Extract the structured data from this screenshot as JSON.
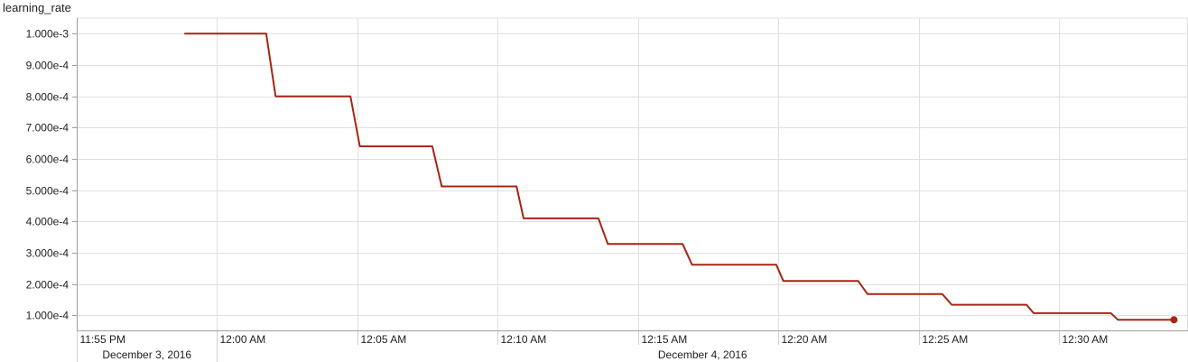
{
  "chart_data": {
    "type": "line",
    "title": "learning_rate",
    "xlabel": "",
    "ylabel": "",
    "x_axis": {
      "type": "time",
      "tick_labels": [
        "11:55 PM",
        "12:00 AM",
        "12:05 AM",
        "12:10 AM",
        "12:15 AM",
        "12:20 AM",
        "12:25 AM",
        "12:30 AM"
      ],
      "tick_times": [
        "2016-12-03T23:55",
        "2016-12-04T00:00",
        "2016-12-04T00:05",
        "2016-12-04T00:10",
        "2016-12-04T00:15",
        "2016-12-04T00:20",
        "2016-12-04T00:25",
        "2016-12-04T00:30"
      ],
      "date_labels": [
        {
          "label": "December 3, 2016",
          "from": "2016-12-03T23:55",
          "to": "2016-12-04T00:00"
        },
        {
          "label": "December 4, 2016",
          "from": "2016-12-04T00:00",
          "to": "2016-12-04T00:34:35"
        }
      ],
      "range": [
        "2016-12-03T23:55",
        "2016-12-04T00:34:35"
      ]
    },
    "y_axis": {
      "tick_labels": [
        "1.000e-4",
        "2.000e-4",
        "3.000e-4",
        "4.000e-4",
        "5.000e-4",
        "6.000e-4",
        "7.000e-4",
        "8.000e-4",
        "9.000e-4",
        "1.000e-3"
      ],
      "tick_values": [
        0.0001,
        0.0002,
        0.0003,
        0.0004,
        0.0005,
        0.0006,
        0.0007,
        0.0008,
        0.0009,
        0.001
      ],
      "range": [
        5.2e-05,
        0.00105
      ]
    },
    "grid": true,
    "series": [
      {
        "color": "#a52714",
        "points": [
          {
            "x": "2016-12-03T23:58:50",
            "y": 0.001
          },
          {
            "x": "2016-12-04T00:01:45",
            "y": 0.001
          },
          {
            "x": "2016-12-04T00:02:05",
            "y": 0.0008
          },
          {
            "x": "2016-12-04T00:04:45",
            "y": 0.0008
          },
          {
            "x": "2016-12-04T00:05:05",
            "y": 0.00064
          },
          {
            "x": "2016-12-04T00:07:40",
            "y": 0.00064
          },
          {
            "x": "2016-12-04T00:08:00",
            "y": 0.000512
          },
          {
            "x": "2016-12-04T00:10:40",
            "y": 0.000512
          },
          {
            "x": "2016-12-04T00:10:55",
            "y": 0.00041
          },
          {
            "x": "2016-12-04T00:13:35",
            "y": 0.00041
          },
          {
            "x": "2016-12-04T00:13:55",
            "y": 0.000328
          },
          {
            "x": "2016-12-04T00:16:35",
            "y": 0.000328
          },
          {
            "x": "2016-12-04T00:16:55",
            "y": 0.000262
          },
          {
            "x": "2016-12-04T00:19:55",
            "y": 0.000262
          },
          {
            "x": "2016-12-04T00:20:10",
            "y": 0.00021
          },
          {
            "x": "2016-12-04T00:22:50",
            "y": 0.00021
          },
          {
            "x": "2016-12-04T00:23:10",
            "y": 0.000168
          },
          {
            "x": "2016-12-04T00:25:50",
            "y": 0.000168
          },
          {
            "x": "2016-12-04T00:26:10",
            "y": 0.000134
          },
          {
            "x": "2016-12-04T00:28:50",
            "y": 0.000134
          },
          {
            "x": "2016-12-04T00:29:05",
            "y": 0.000107
          },
          {
            "x": "2016-12-04T00:31:50",
            "y": 0.000107
          },
          {
            "x": "2016-12-04T00:32:05",
            "y": 8.6e-05
          },
          {
            "x": "2016-12-04T00:34:05",
            "y": 8.6e-05
          }
        ]
      }
    ]
  }
}
